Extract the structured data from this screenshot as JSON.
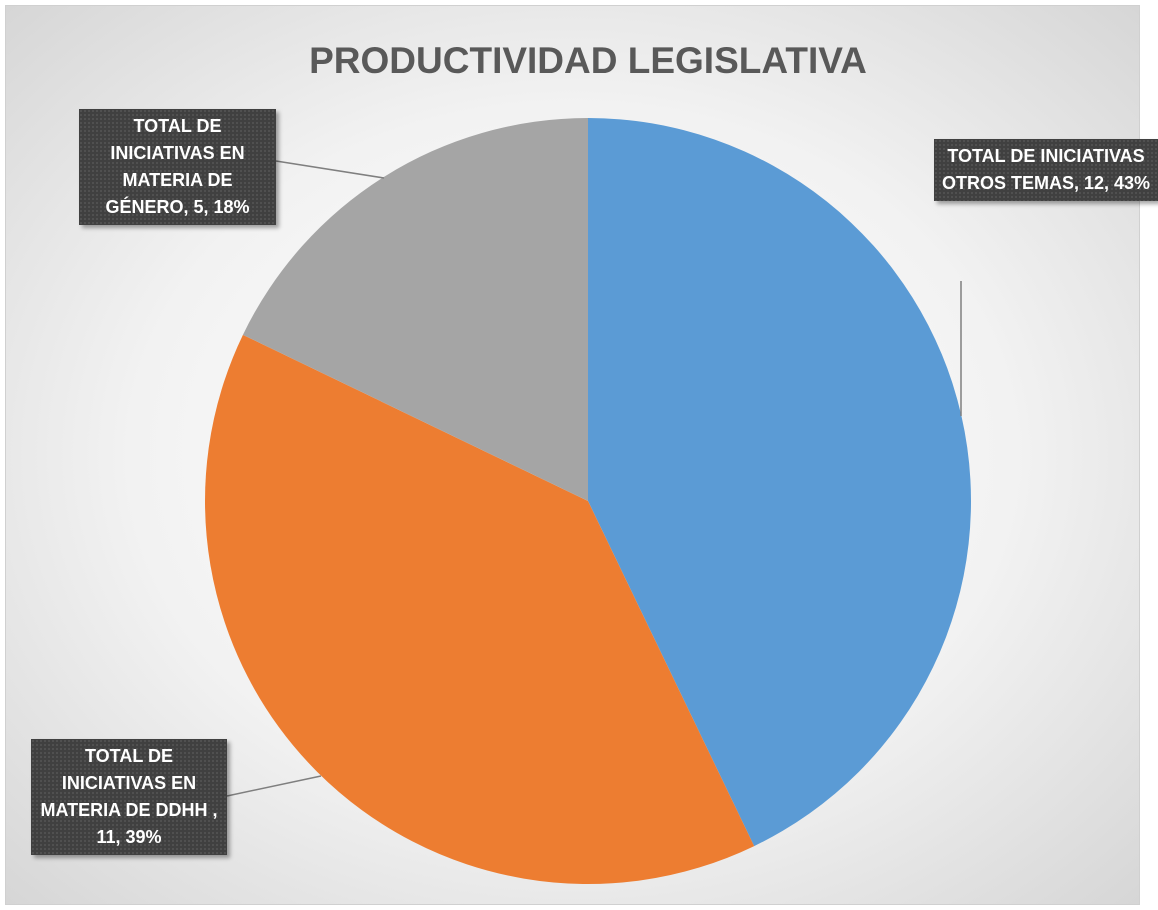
{
  "chart_data": {
    "type": "pie",
    "title": "PRODUCTIVIDAD LEGISLATIVA",
    "values": [
      12,
      11,
      5
    ],
    "value_labels": [
      "TOTAL DE INICIATIVAS OTROS TEMAS, 12, 43%",
      "TOTAL DE INICIATIVAS EN MATERIA DE DDHH , 11, 39%",
      "TOTAL DE INICIATIVAS EN MATERIA DE GÉNERO, 5, 18%"
    ],
    "colors": [
      "#5b9bd5",
      "#ed7d31",
      "#a5a5a5"
    ]
  }
}
